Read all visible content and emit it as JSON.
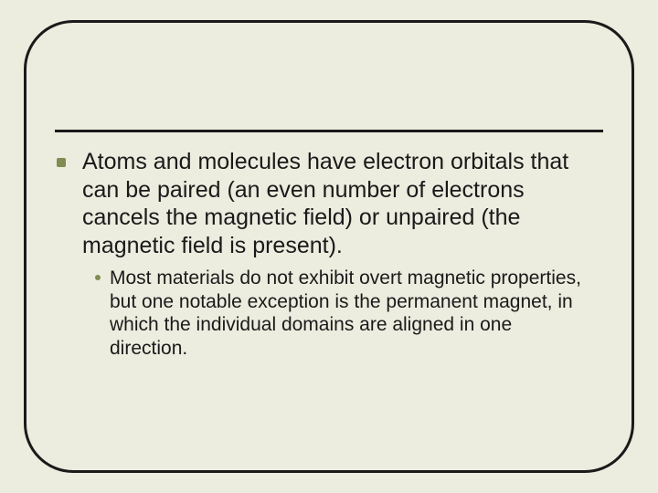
{
  "slide": {
    "background_color": "#ececdf",
    "frame_border_color": "#1a1a1a",
    "frame_border_width": 3,
    "frame_border_radius": 54,
    "divider_color": "#1a1a1a",
    "bullet_color": "#7f8c52",
    "text_color": "#1a1a1a",
    "bullets": [
      {
        "level": 1,
        "text": "Atoms and molecules have electron orbitals that can be paired (an even number of electrons cancels the magnetic field) or unpaired (the magnetic field is present).",
        "fontsize": 25,
        "children": [
          {
            "level": 2,
            "text": "Most materials do not exhibit overt magnetic properties, but one notable exception is the permanent magnet, in which the individual domains are aligned in one direction.",
            "fontsize": 21
          }
        ]
      }
    ]
  }
}
